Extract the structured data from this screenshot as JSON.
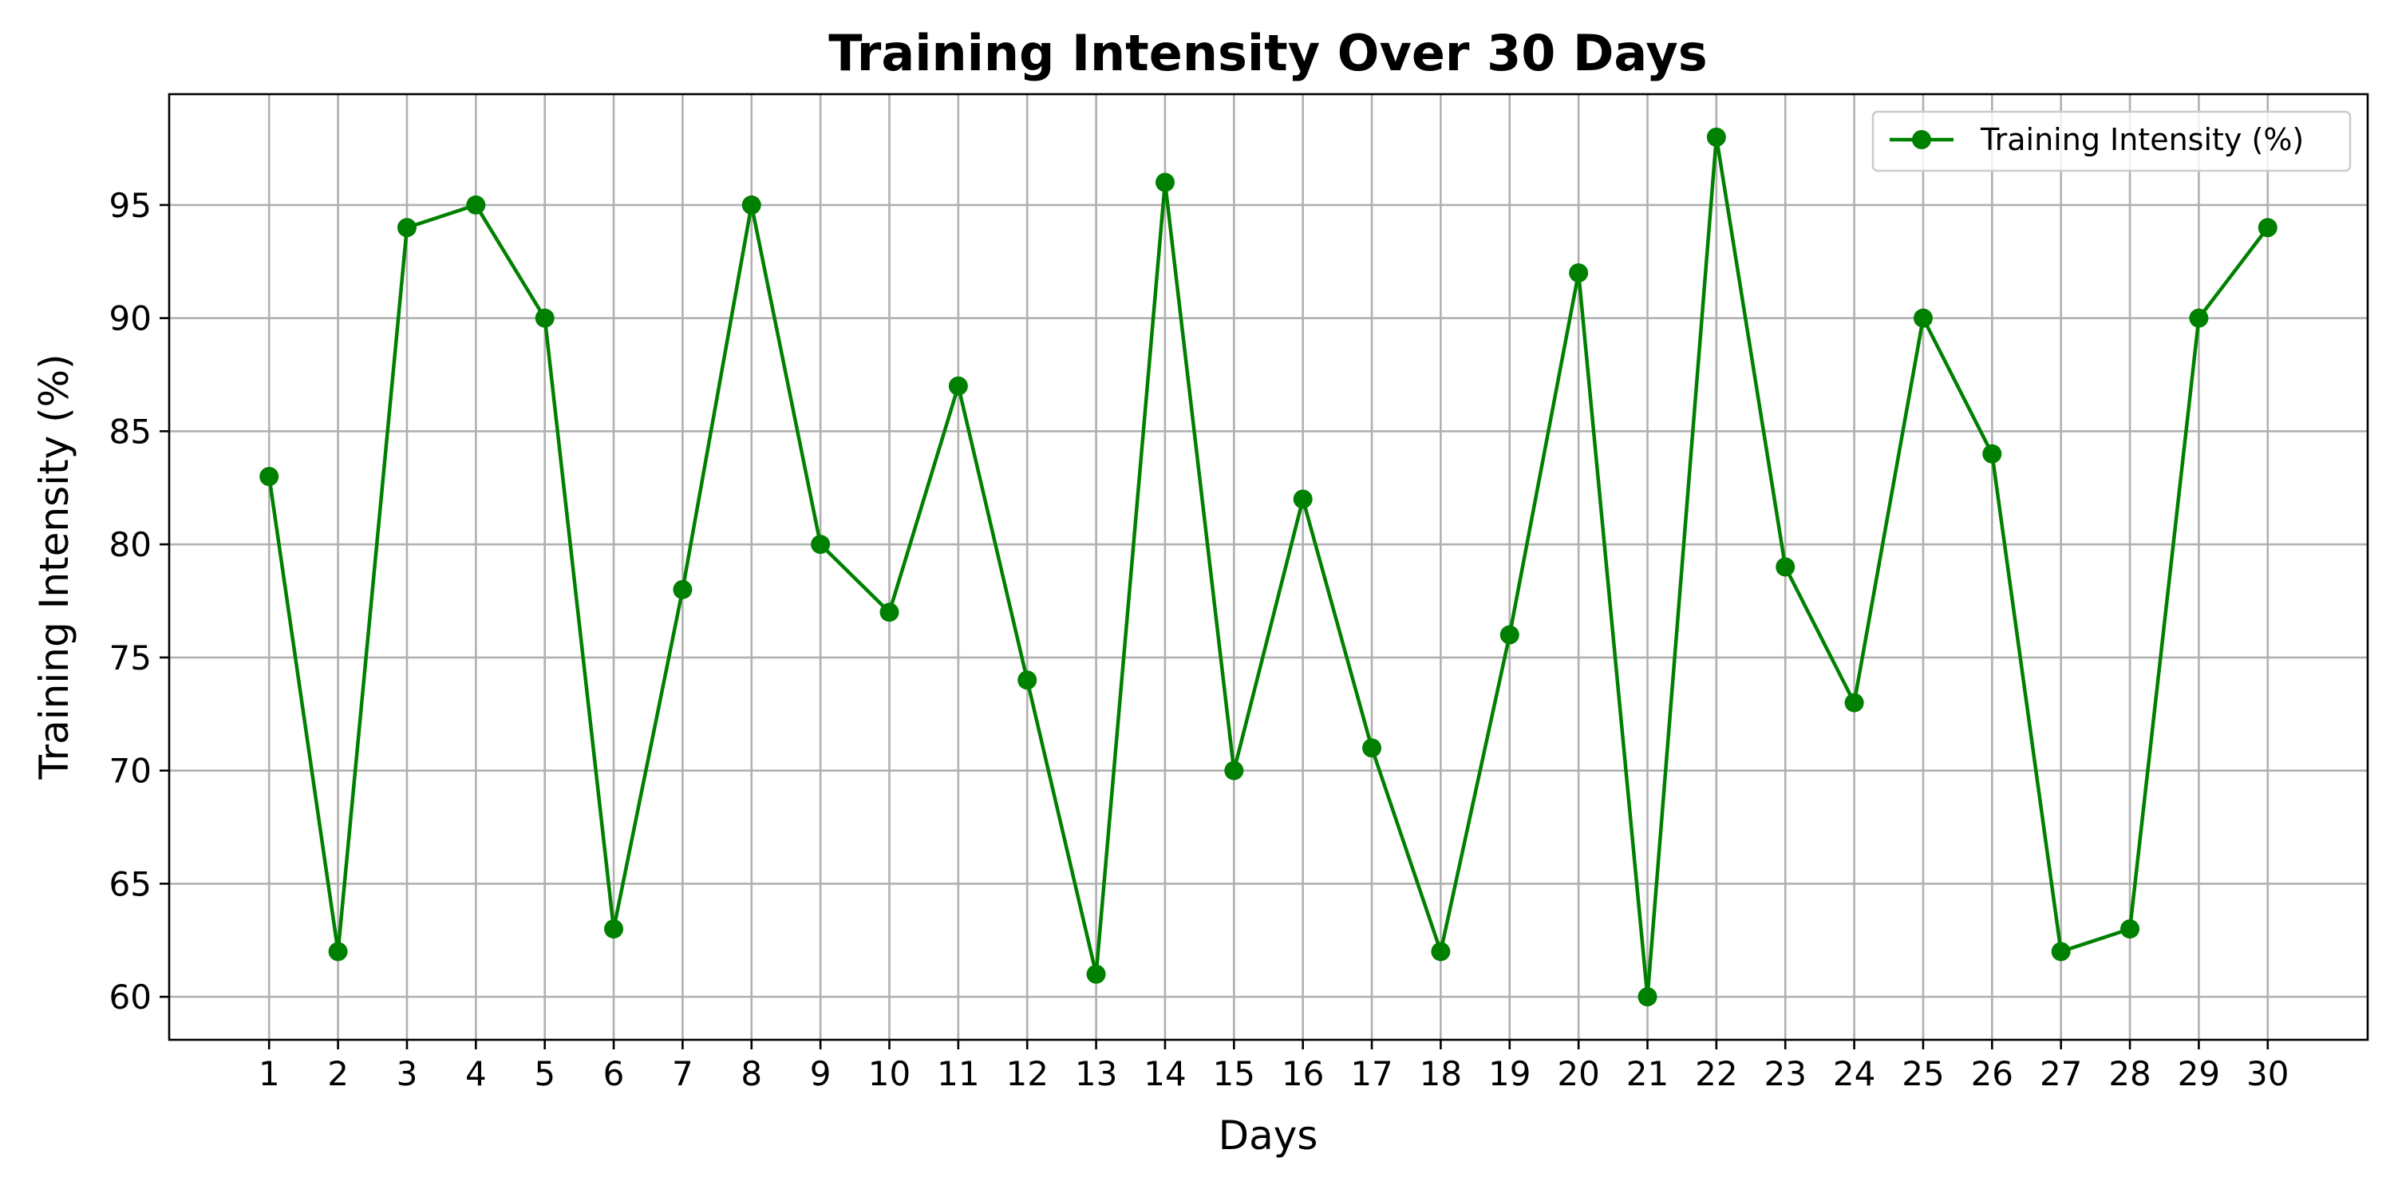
{
  "chart_data": {
    "type": "line",
    "title": "Training Intensity Over 30 Days",
    "xlabel": "Days",
    "ylabel": "Training Intensity (%)",
    "x": [
      1,
      2,
      3,
      4,
      5,
      6,
      7,
      8,
      9,
      10,
      11,
      12,
      13,
      14,
      15,
      16,
      17,
      18,
      19,
      20,
      21,
      22,
      23,
      24,
      25,
      26,
      27,
      28,
      29,
      30
    ],
    "xticks": [
      "1",
      "2",
      "3",
      "4",
      "5",
      "6",
      "7",
      "8",
      "9",
      "10",
      "11",
      "12",
      "13",
      "14",
      "15",
      "16",
      "17",
      "18",
      "19",
      "20",
      "21",
      "22",
      "23",
      "24",
      "25",
      "26",
      "27",
      "28",
      "29",
      "30"
    ],
    "yticks": [
      "60",
      "65",
      "70",
      "75",
      "80",
      "85",
      "90",
      "95"
    ],
    "xlim": [
      -0.45,
      31.45
    ],
    "ylim": [
      58.1,
      99.9
    ],
    "series": [
      {
        "name": "Training Intensity (%)",
        "color": "#008000",
        "marker": "circle",
        "values": [
          83,
          62,
          94,
          95,
          90,
          63,
          78,
          95,
          80,
          77,
          87,
          74,
          61,
          96,
          70,
          82,
          71,
          62,
          76,
          92,
          60,
          98,
          79,
          73,
          90,
          84,
          62,
          63,
          90,
          94
        ]
      }
    ],
    "grid": true,
    "legend": "upper-right"
  }
}
